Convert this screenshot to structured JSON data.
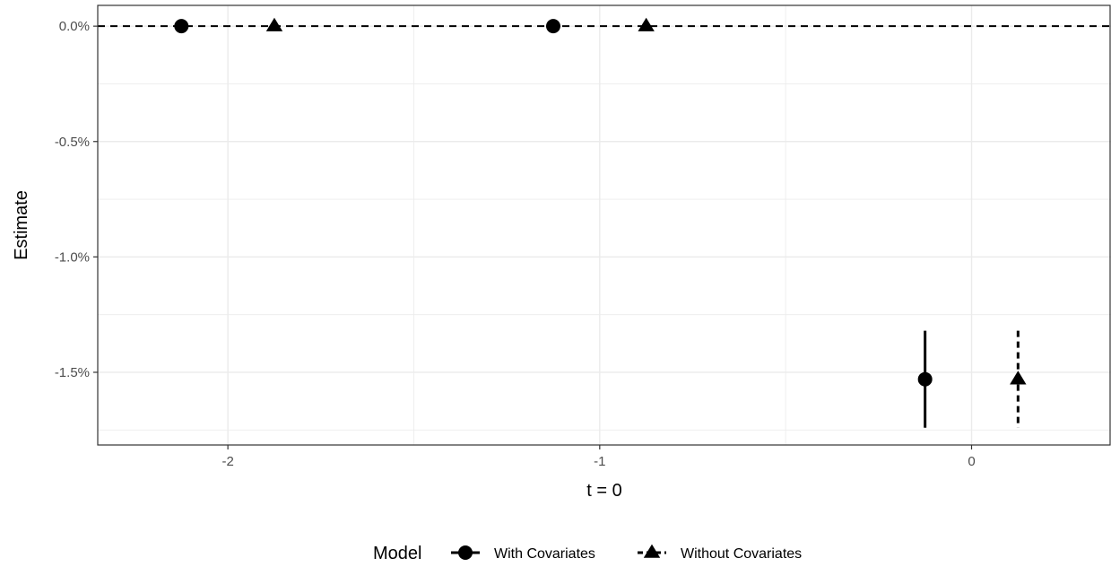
{
  "chart_data": {
    "type": "scatter",
    "xlabel": "t = 0",
    "ylabel": "Estimate",
    "xlim": [
      -2.35,
      0.375
    ],
    "ylim": [
      -1.815,
      0.09
    ],
    "x_ticks": [
      -2,
      -1,
      0
    ],
    "x_tick_labels": [
      "-2",
      "-1",
      "0"
    ],
    "y_ticks": [
      0.0,
      -0.5,
      -1.0,
      -1.5
    ],
    "y_tick_labels": [
      "0.0%",
      "-0.5%",
      "-1.0%",
      "-1.5%"
    ],
    "grid": true,
    "reference_line": {
      "y": 0.0,
      "style": "dashed"
    },
    "legend": {
      "title": "Model",
      "position": "bottom"
    },
    "series": [
      {
        "name": "With Covariates",
        "marker": "circle",
        "line_style": "solid",
        "points": [
          {
            "x": -2.125,
            "y": 0.0,
            "lower": null,
            "upper": null
          },
          {
            "x": -1.125,
            "y": 0.0,
            "lower": null,
            "upper": null
          },
          {
            "x": -0.125,
            "y": -1.53,
            "lower": -1.74,
            "upper": -1.32
          }
        ]
      },
      {
        "name": "Without Covariates",
        "marker": "triangle",
        "line_style": "dashed",
        "points": [
          {
            "x": -1.875,
            "y": 0.0,
            "lower": null,
            "upper": null
          },
          {
            "x": -0.875,
            "y": 0.0,
            "lower": null,
            "upper": null
          },
          {
            "x": 0.125,
            "y": -1.53,
            "lower": -1.74,
            "upper": -1.32
          }
        ]
      }
    ],
    "colors": {
      "marker": "#000000",
      "grid": "#ebebeb",
      "panel_border": "#333333",
      "tick_text": "#4d4d4d"
    }
  }
}
